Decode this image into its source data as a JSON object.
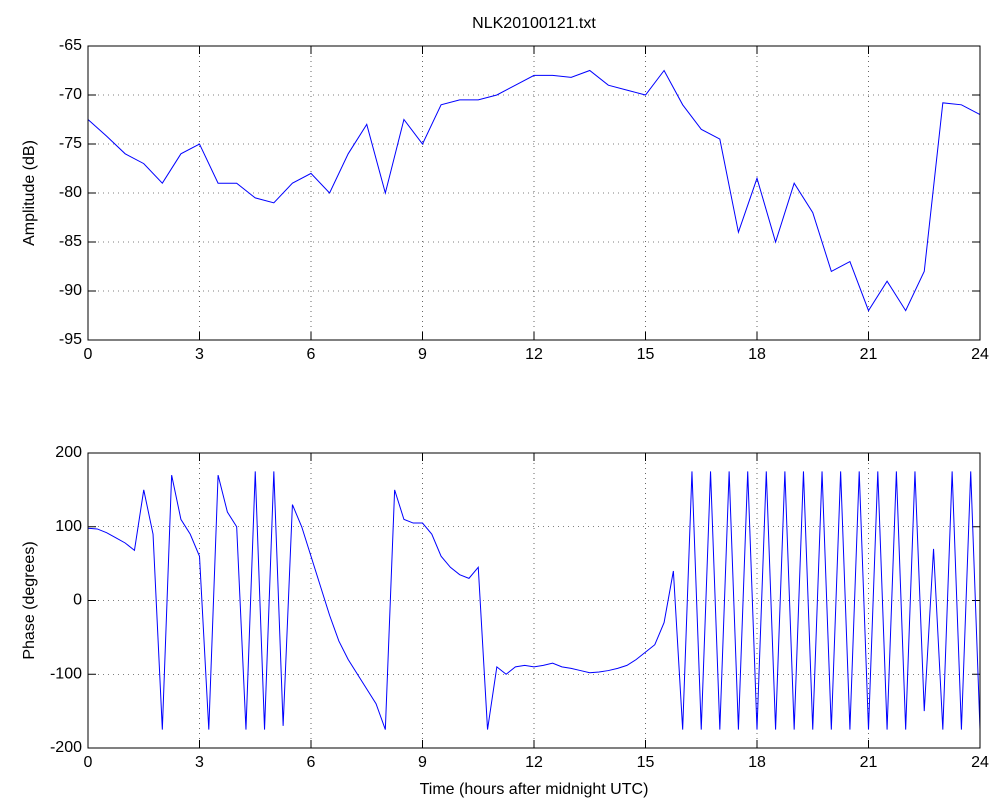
{
  "chart_data": [
    {
      "type": "line",
      "title": "NLK20100121.txt",
      "y_label": "Amplitude (dB)",
      "x": [
        0,
        0.5,
        1,
        1.5,
        2,
        2.5,
        3,
        3.5,
        4,
        4.5,
        5,
        5.5,
        6,
        6.5,
        7,
        7.5,
        8,
        8.5,
        9,
        9.5,
        10,
        10.5,
        11,
        11.5,
        12,
        12.5,
        13,
        13.5,
        14,
        14.5,
        15,
        15.5,
        16,
        16.5,
        17,
        17.5,
        18,
        18.5,
        19,
        19.5,
        20,
        20.5,
        21,
        21.5,
        22,
        22.5,
        23,
        23.5,
        24
      ],
      "series": [
        {
          "color": "#0000ff",
          "values": [
            -72.5,
            -74.2,
            -76,
            -77,
            -79,
            -76,
            -75,
            -79,
            -79,
            -80.5,
            -81,
            -79,
            -78,
            -80,
            -76,
            -73,
            -80,
            -72.5,
            -75,
            -71,
            -70.5,
            -70.5,
            -70,
            -69,
            -68,
            -68,
            -68.2,
            -67.5,
            -69,
            -69.5,
            -70,
            -67.5,
            -71,
            -73.5,
            -74.5,
            -84,
            -78.5,
            -85,
            -79,
            -82,
            -88,
            -87,
            -92,
            -89,
            -92,
            -88,
            -70.8,
            -71,
            -72
          ]
        }
      ],
      "xlim": [
        0,
        24
      ],
      "xticks": [
        0,
        3,
        6,
        9,
        12,
        15,
        18,
        21,
        24
      ],
      "ylim": [
        -95,
        -65
      ],
      "yticks": [
        -95,
        -90,
        -85,
        -80,
        -75,
        -70,
        -65
      ],
      "grid": true
    },
    {
      "type": "line",
      "y_label": "Phase (degrees)",
      "x_label": "Time (hours after midnight UTC)",
      "x": [
        0,
        0.25,
        0.5,
        0.75,
        1,
        1.25,
        1.5,
        1.75,
        2,
        2.25,
        2.5,
        2.75,
        3,
        3.25,
        3.5,
        3.75,
        4,
        4.25,
        4.5,
        4.75,
        5,
        5.25,
        5.5,
        5.75,
        6,
        6.25,
        6.5,
        6.75,
        7,
        7.25,
        7.5,
        7.75,
        8,
        8.25,
        8.5,
        8.75,
        9,
        9.25,
        9.5,
        9.75,
        10,
        10.25,
        10.5,
        10.75,
        11,
        11.25,
        11.5,
        11.75,
        12,
        12.25,
        12.5,
        12.75,
        13,
        13.25,
        13.5,
        13.75,
        14,
        14.25,
        14.5,
        14.75,
        15,
        15.25,
        15.5,
        15.75,
        16,
        16.25,
        16.5,
        16.75,
        17,
        17.25,
        17.5,
        17.75,
        18,
        18.25,
        18.5,
        18.75,
        19,
        19.25,
        19.5,
        19.75,
        20,
        20.25,
        20.5,
        20.75,
        21,
        21.25,
        21.5,
        21.75,
        22,
        22.25,
        22.5,
        22.75,
        23,
        23.25,
        23.5,
        23.75,
        24
      ],
      "series": [
        {
          "color": "#0000ff",
          "values": [
            98,
            97,
            92,
            85,
            78,
            68,
            150,
            90,
            -175,
            170,
            110,
            90,
            60,
            -175,
            170,
            120,
            100,
            -175,
            175,
            -175,
            175,
            -170,
            130,
            100,
            60,
            20,
            -20,
            -55,
            -80,
            -100,
            -120,
            -140,
            -175,
            150,
            110,
            105,
            105,
            90,
            60,
            45,
            35,
            30,
            45,
            -175,
            -90,
            -100,
            -90,
            -88,
            -90,
            -88,
            -85,
            -90,
            -92,
            -95,
            -98,
            -97,
            -95,
            -92,
            -88,
            -80,
            -70,
            -60,
            -30,
            40,
            -175,
            175,
            -175,
            175,
            -175,
            175,
            -175,
            175,
            -175,
            175,
            -175,
            175,
            -175,
            175,
            -175,
            175,
            -175,
            175,
            -175,
            175,
            -175,
            175,
            -175,
            175,
            -175,
            175,
            -150,
            70,
            -175,
            175,
            -175,
            175,
            -175
          ]
        }
      ],
      "xlim": [
        0,
        24
      ],
      "xticks": [
        0,
        3,
        6,
        9,
        12,
        15,
        18,
        21,
        24
      ],
      "ylim": [
        -200,
        200
      ],
      "yticks": [
        -200,
        -100,
        0,
        100,
        200
      ],
      "grid": true
    }
  ]
}
